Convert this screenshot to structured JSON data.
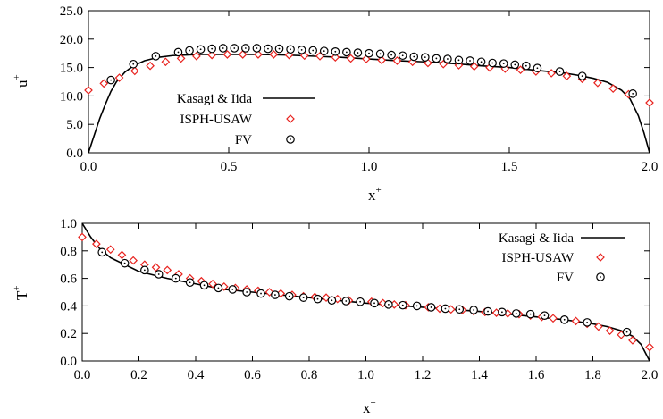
{
  "chart_data": [
    {
      "type": "line",
      "xlabel": "x",
      "xlabel_sup": "+",
      "ylabel": "u",
      "ylabel_sup": "+",
      "xlim": [
        0.0,
        2.0
      ],
      "ylim": [
        0.0,
        25.0
      ],
      "xticks": [
        "0.0",
        "0.5",
        "1.0",
        "1.5",
        "2.0"
      ],
      "yticks": [
        "0.0",
        "5.0",
        "10.0",
        "15.0",
        "20.0",
        "25.0"
      ],
      "legend_position": "left",
      "series": [
        {
          "name": "Kasagi & Iida",
          "style": "line",
          "color": "#000000",
          "x": [
            0.0,
            0.02,
            0.04,
            0.06,
            0.08,
            0.1,
            0.13,
            0.16,
            0.2,
            0.25,
            0.3,
            0.4,
            0.5,
            0.6,
            0.7,
            0.8,
            0.9,
            1.0,
            1.1,
            1.2,
            1.3,
            1.4,
            1.5,
            1.6,
            1.7,
            1.75,
            1.8,
            1.85,
            1.9,
            1.93,
            1.96,
            1.98,
            2.0
          ],
          "y": [
            0.0,
            3.0,
            6.0,
            8.5,
            10.8,
            12.5,
            14.2,
            15.3,
            16.2,
            16.8,
            17.1,
            17.3,
            17.3,
            17.3,
            17.2,
            17.0,
            16.8,
            16.5,
            16.2,
            16.0,
            15.7,
            15.3,
            15.0,
            14.5,
            14.0,
            13.6,
            13.1,
            12.4,
            11.0,
            9.5,
            6.5,
            3.5,
            0.0
          ]
        },
        {
          "name": "ISPH-USAW",
          "style": "diamond",
          "color": "#e8231f",
          "x": [
            0.0,
            0.055,
            0.11,
            0.165,
            0.22,
            0.275,
            0.33,
            0.385,
            0.44,
            0.495,
            0.55,
            0.605,
            0.66,
            0.715,
            0.77,
            0.825,
            0.88,
            0.935,
            0.99,
            1.045,
            1.1,
            1.155,
            1.21,
            1.265,
            1.32,
            1.375,
            1.43,
            1.485,
            1.54,
            1.595,
            1.65,
            1.705,
            1.76,
            1.815,
            1.87,
            1.925,
            2.0
          ],
          "y": [
            11.0,
            12.2,
            13.2,
            14.4,
            15.3,
            16.0,
            16.6,
            17.0,
            17.2,
            17.3,
            17.3,
            17.3,
            17.3,
            17.2,
            17.1,
            17.0,
            16.8,
            16.6,
            16.5,
            16.3,
            16.2,
            16.0,
            15.8,
            15.6,
            15.4,
            15.2,
            15.0,
            14.8,
            14.6,
            14.3,
            14.0,
            13.5,
            13.0,
            12.3,
            11.3,
            10.3,
            8.8
          ]
        },
        {
          "name": "FV",
          "style": "circle",
          "color": "#000000",
          "x": [
            0.08,
            0.16,
            0.24,
            0.32,
            0.36,
            0.4,
            0.44,
            0.48,
            0.52,
            0.56,
            0.6,
            0.64,
            0.68,
            0.72,
            0.76,
            0.8,
            0.84,
            0.88,
            0.92,
            0.96,
            1.0,
            1.04,
            1.08,
            1.12,
            1.16,
            1.2,
            1.24,
            1.28,
            1.32,
            1.36,
            1.4,
            1.44,
            1.48,
            1.52,
            1.56,
            1.6,
            1.68,
            1.76,
            1.94
          ],
          "y": [
            12.8,
            15.6,
            17.0,
            17.7,
            18.0,
            18.2,
            18.3,
            18.4,
            18.4,
            18.4,
            18.4,
            18.3,
            18.3,
            18.2,
            18.1,
            18.0,
            17.9,
            17.8,
            17.7,
            17.6,
            17.5,
            17.4,
            17.2,
            17.1,
            16.9,
            16.8,
            16.6,
            16.5,
            16.3,
            16.2,
            16.0,
            15.8,
            15.7,
            15.5,
            15.3,
            14.9,
            14.3,
            13.5,
            10.4
          ]
        }
      ]
    },
    {
      "type": "line",
      "xlabel": "x",
      "xlabel_sup": "+",
      "ylabel": "T",
      "ylabel_sup": "+",
      "xlim": [
        0.0,
        2.0
      ],
      "ylim": [
        0.0,
        1.0
      ],
      "xticks": [
        "0.0",
        "0.2",
        "0.4",
        "0.6",
        "0.8",
        "1.0",
        "1.2",
        "1.4",
        "1.6",
        "1.8",
        "2.0"
      ],
      "yticks": [
        "0.0",
        "0.2",
        "0.4",
        "0.6",
        "0.8",
        "1.0"
      ],
      "legend_position": "top-right",
      "series": [
        {
          "name": "Kasagi & Iida",
          "style": "line",
          "color": "#000000",
          "x": [
            0.0,
            0.03,
            0.06,
            0.1,
            0.15,
            0.2,
            0.3,
            0.4,
            0.5,
            0.6,
            0.8,
            1.0,
            1.2,
            1.4,
            1.6,
            1.7,
            1.8,
            1.85,
            1.9,
            1.94,
            1.97,
            2.0
          ],
          "y": [
            1.0,
            0.9,
            0.82,
            0.75,
            0.7,
            0.65,
            0.6,
            0.56,
            0.52,
            0.5,
            0.46,
            0.42,
            0.39,
            0.36,
            0.32,
            0.3,
            0.27,
            0.25,
            0.22,
            0.18,
            0.12,
            0.0
          ]
        },
        {
          "name": "ISPH-USAW",
          "style": "diamond",
          "color": "#e8231f",
          "x": [
            0.0,
            0.05,
            0.1,
            0.14,
            0.18,
            0.22,
            0.26,
            0.3,
            0.34,
            0.38,
            0.42,
            0.46,
            0.5,
            0.54,
            0.58,
            0.62,
            0.66,
            0.7,
            0.74,
            0.78,
            0.82,
            0.86,
            0.9,
            0.94,
            0.98,
            1.02,
            1.06,
            1.1,
            1.14,
            1.18,
            1.22,
            1.26,
            1.3,
            1.34,
            1.38,
            1.42,
            1.46,
            1.5,
            1.54,
            1.58,
            1.62,
            1.66,
            1.7,
            1.74,
            1.78,
            1.82,
            1.86,
            1.9,
            1.94,
            2.0
          ],
          "y": [
            0.9,
            0.85,
            0.81,
            0.77,
            0.73,
            0.7,
            0.68,
            0.66,
            0.63,
            0.6,
            0.58,
            0.56,
            0.54,
            0.53,
            0.52,
            0.51,
            0.5,
            0.49,
            0.48,
            0.47,
            0.465,
            0.46,
            0.45,
            0.44,
            0.435,
            0.43,
            0.42,
            0.41,
            0.405,
            0.4,
            0.39,
            0.38,
            0.375,
            0.37,
            0.36,
            0.355,
            0.35,
            0.345,
            0.34,
            0.33,
            0.32,
            0.31,
            0.3,
            0.29,
            0.27,
            0.25,
            0.22,
            0.19,
            0.15,
            0.1
          ]
        },
        {
          "name": "FV",
          "style": "circle",
          "color": "#000000",
          "x": [
            0.07,
            0.15,
            0.22,
            0.27,
            0.33,
            0.38,
            0.43,
            0.48,
            0.53,
            0.58,
            0.63,
            0.68,
            0.73,
            0.78,
            0.83,
            0.88,
            0.93,
            0.98,
            1.03,
            1.08,
            1.13,
            1.18,
            1.23,
            1.28,
            1.33,
            1.38,
            1.43,
            1.48,
            1.53,
            1.58,
            1.63,
            1.7,
            1.78,
            1.92
          ],
          "y": [
            0.79,
            0.71,
            0.66,
            0.63,
            0.6,
            0.57,
            0.55,
            0.53,
            0.52,
            0.5,
            0.49,
            0.48,
            0.47,
            0.46,
            0.45,
            0.44,
            0.435,
            0.43,
            0.42,
            0.41,
            0.405,
            0.4,
            0.39,
            0.38,
            0.375,
            0.37,
            0.36,
            0.355,
            0.345,
            0.34,
            0.33,
            0.3,
            0.28,
            0.21
          ]
        }
      ]
    }
  ]
}
